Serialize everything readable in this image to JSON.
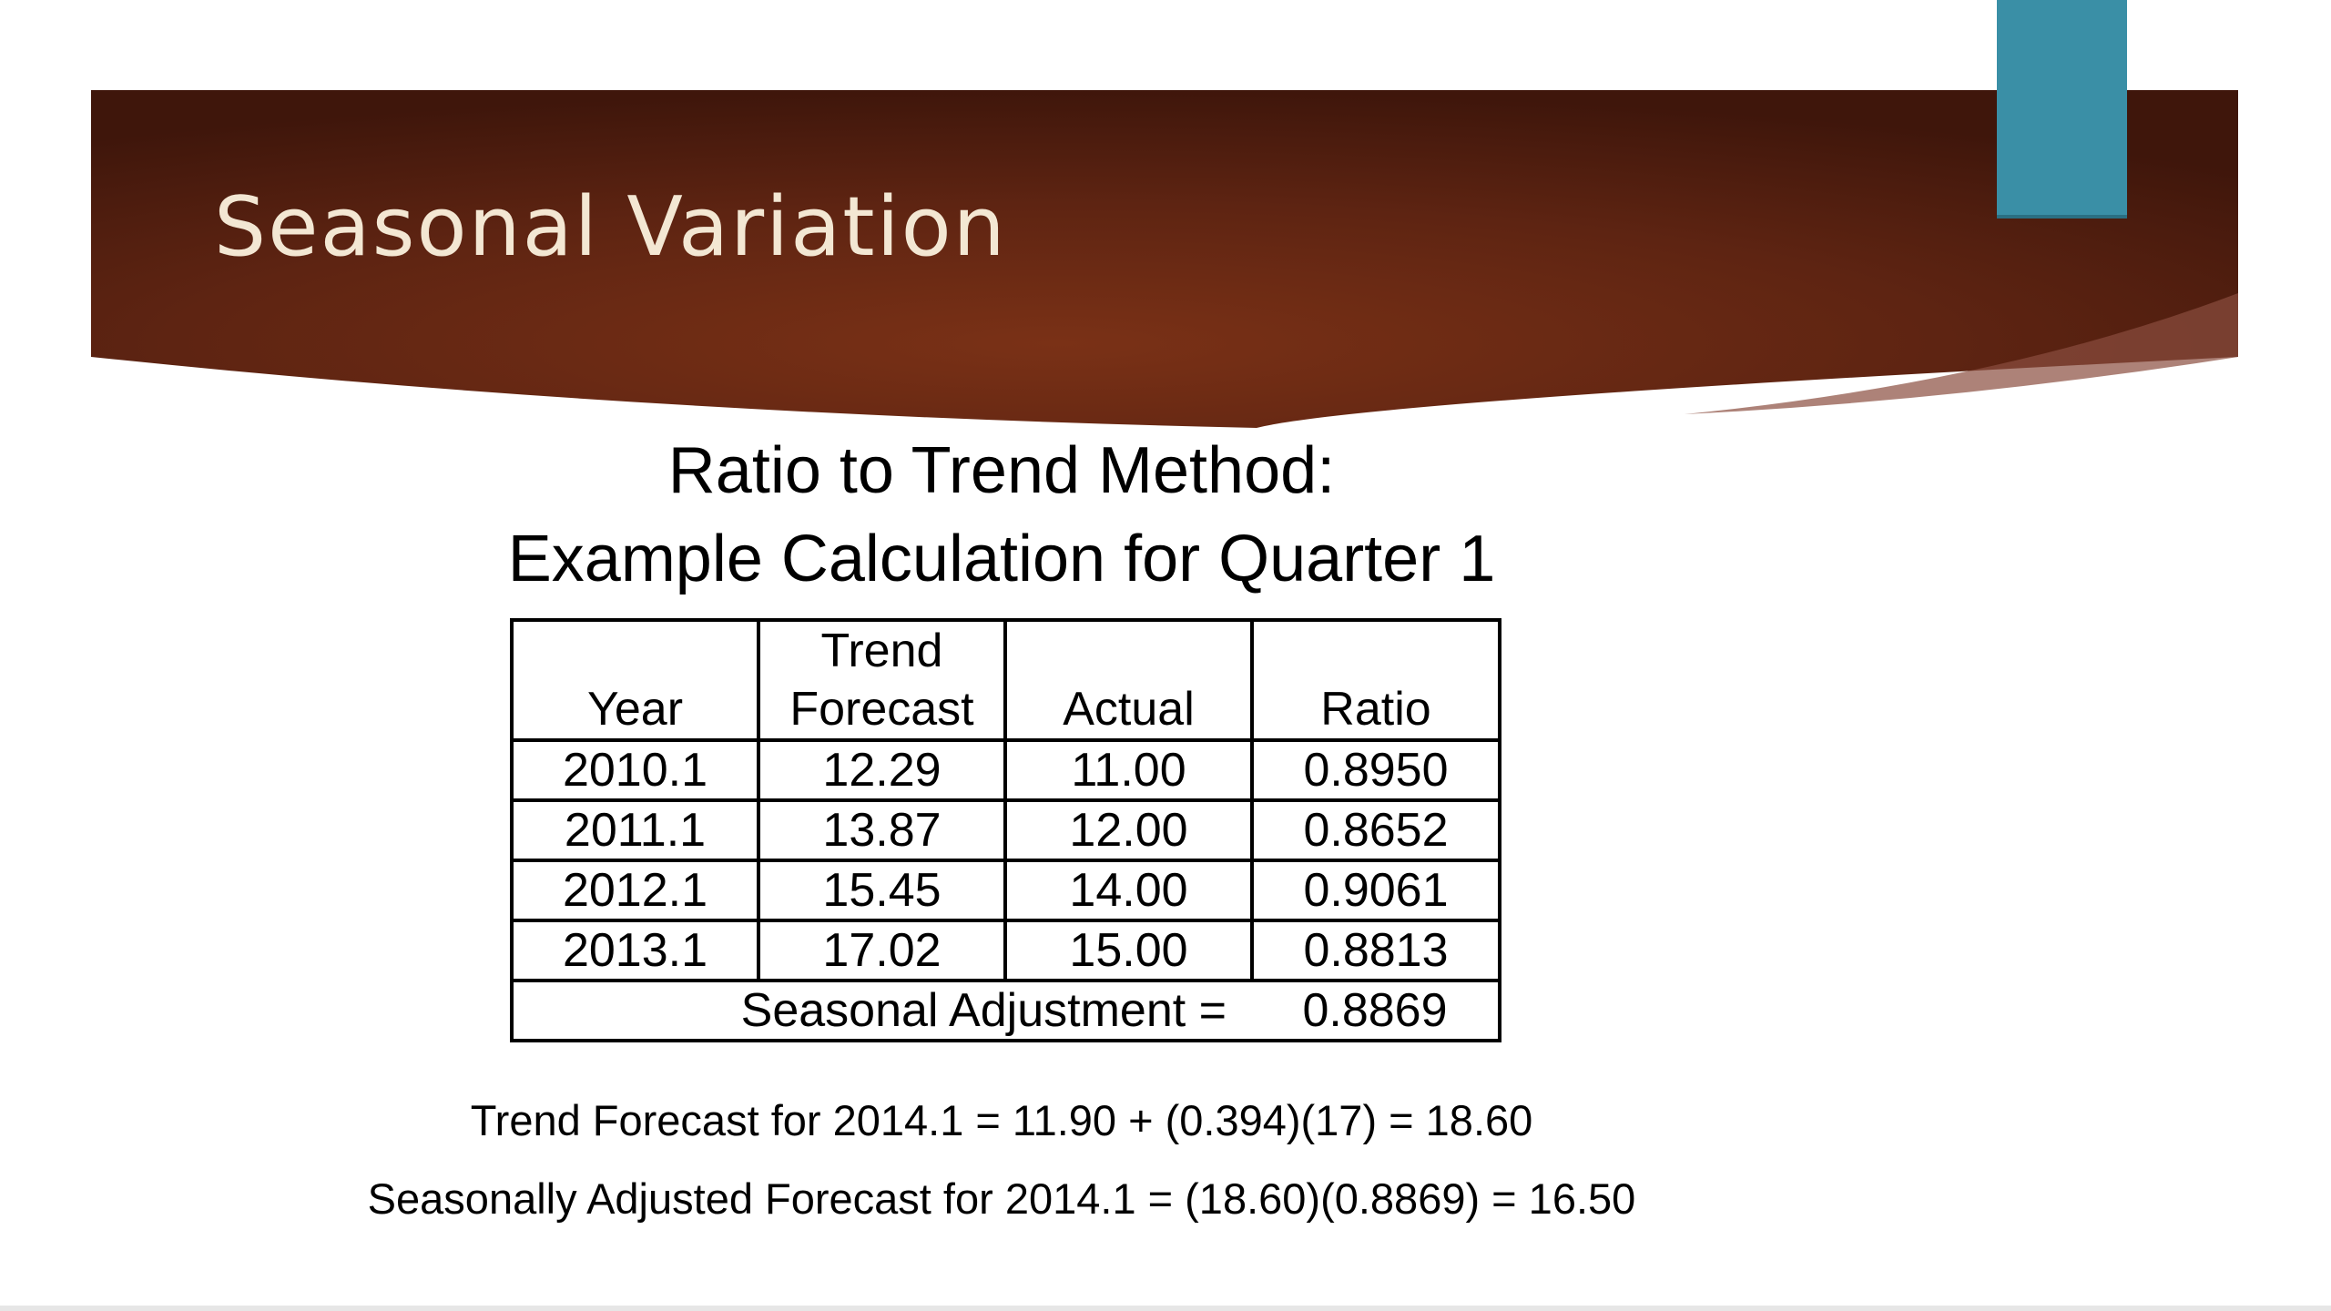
{
  "slide": {
    "title": "Seasonal Variation",
    "colors": {
      "banner_dark": "#4a1a0e",
      "banner_mid": "#6e2a14",
      "accent_tab": "#3a8fa6",
      "title_text": "#f3e7d3"
    }
  },
  "content": {
    "heading_line1": "Ratio to Trend Method:",
    "heading_line2": "Example Calculation for Quarter 1",
    "table": {
      "headers": [
        {
          "line1": "",
          "line2": "Year"
        },
        {
          "line1": "Trend",
          "line2": "Forecast"
        },
        {
          "line1": "",
          "line2": "Actual"
        },
        {
          "line1": "",
          "line2": "Ratio"
        }
      ],
      "rows": [
        [
          "2010.1",
          "12.29",
          "11.00",
          "0.8950"
        ],
        [
          "2011.1",
          "13.87",
          "12.00",
          "0.8652"
        ],
        [
          "2012.1",
          "15.45",
          "14.00",
          "0.9061"
        ],
        [
          "2013.1",
          "17.02",
          "15.00",
          "0.8813"
        ]
      ],
      "summary_label": "Seasonal Adjustment =",
      "summary_value": "0.8869"
    },
    "formula1": "Trend Forecast for 2014.1 = 11.90 + (0.394)(17) = 18.60",
    "formula2": "Seasonally Adjusted Forecast for 2014.1 = (18.60)(0.8869) = 16.50"
  }
}
